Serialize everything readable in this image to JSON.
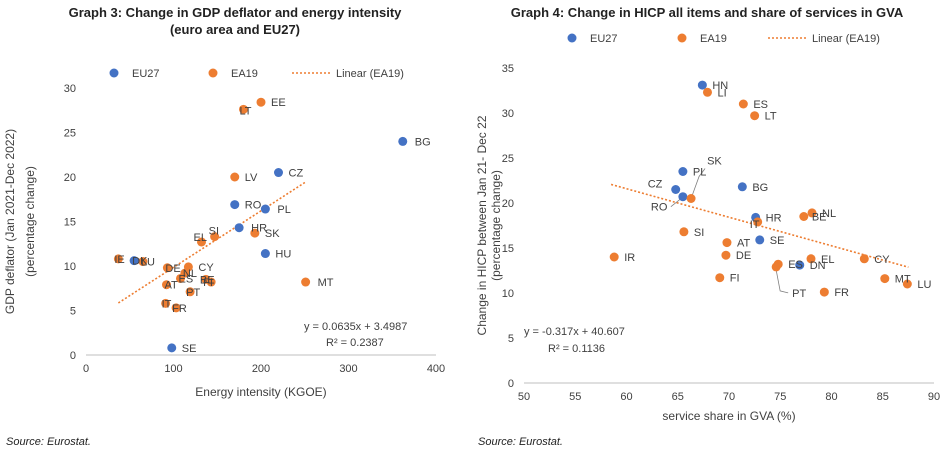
{
  "charts": [
    {
      "type": "scatter",
      "title_line1": "Graph 3: Change in GDP deflator and energy intensity",
      "title_line2": "(euro area and EU27)",
      "xlabel": "Energy intensity (KGOE)",
      "ylabel_line1": "GDP deflator (Jan 2021-Dec 2022)",
      "ylabel_line2": "(percentage change)",
      "xlim": [
        0,
        400
      ],
      "ylim": [
        0,
        30
      ],
      "xticks": [
        0,
        100,
        200,
        300,
        400
      ],
      "yticks": [
        0,
        5,
        10,
        15,
        20,
        25,
        30
      ],
      "grid": false,
      "legend_position": "top",
      "legend": [
        {
          "label": "EU27",
          "kind": "marker",
          "color": "#4472C4"
        },
        {
          "label": "EA19",
          "kind": "marker",
          "color": "#ED7D31"
        },
        {
          "label": "Linear (EA19)",
          "kind": "line",
          "color": "#ED7D31"
        }
      ],
      "trendline": {
        "slope": 0.0635,
        "intercept": 3.4987,
        "x_range": [
          37,
          252
        ],
        "color": "#ED7D31"
      },
      "equation": "y = 0.0635x + 3.4987",
      "r2": "R² = 0.2387",
      "eu27": [
        {
          "label": "BG",
          "x": 362,
          "y": 24.0
        },
        {
          "label": "CZ",
          "x": 220,
          "y": 20.5
        },
        {
          "label": "RO",
          "x": 170,
          "y": 16.9
        },
        {
          "label": "PL",
          "x": 205,
          "y": 16.4
        },
        {
          "label": "HR",
          "x": 175,
          "y": 14.3
        },
        {
          "label": "HU",
          "x": 205,
          "y": 11.4
        },
        {
          "label": "DK",
          "x": 55,
          "y": 10.6
        },
        {
          "label": "SE",
          "x": 98,
          "y": 0.8
        }
      ],
      "ea19": [
        {
          "label": "EE",
          "x": 200,
          "y": 28.4
        },
        {
          "label": "LT",
          "x": 180,
          "y": 27.6
        },
        {
          "label": "LV",
          "x": 170,
          "y": 20.0
        },
        {
          "label": "SK",
          "x": 193,
          "y": 13.7
        },
        {
          "label": "SI",
          "x": 147,
          "y": 13.3
        },
        {
          "label": "EL",
          "x": 132,
          "y": 12.7
        },
        {
          "label": "IE",
          "x": 37,
          "y": 10.8
        },
        {
          "label": "LU",
          "x": 65,
          "y": 10.5
        },
        {
          "label": "DE",
          "x": 93,
          "y": 9.8
        },
        {
          "label": "CY",
          "x": 117,
          "y": 9.9
        },
        {
          "label": "NL",
          "x": 113,
          "y": 9.2
        },
        {
          "label": "ES",
          "x": 108,
          "y": 8.6
        },
        {
          "label": "BE",
          "x": 137,
          "y": 8.5
        },
        {
          "label": "FI",
          "x": 143,
          "y": 8.2
        },
        {
          "label": "AT",
          "x": 92,
          "y": 7.9
        },
        {
          "label": "PT",
          "x": 119,
          "y": 7.1
        },
        {
          "label": "IT",
          "x": 91,
          "y": 5.8
        },
        {
          "label": "FR",
          "x": 103,
          "y": 5.3
        },
        {
          "label": "MT",
          "x": 251,
          "y": 8.2
        }
      ]
    },
    {
      "type": "scatter",
      "title_line1": "Graph 4: Change in HICP all items and share of services in GVA",
      "title_line2": "",
      "xlabel": "service share in GVA (%)",
      "ylabel_line1": "Change in HICP between Jan 21- Dec 22",
      "ylabel_line2": "(percentage change)",
      "xlim": [
        50,
        90
      ],
      "ylim": [
        0,
        35
      ],
      "xticks": [
        50,
        55,
        60,
        65,
        70,
        75,
        80,
        85,
        90
      ],
      "yticks": [
        0,
        5,
        10,
        15,
        20,
        25,
        30,
        35
      ],
      "grid": false,
      "legend_position": "top",
      "legend": [
        {
          "label": "EU27",
          "kind": "marker",
          "color": "#4472C4"
        },
        {
          "label": "EA19",
          "kind": "marker",
          "color": "#ED7D31"
        },
        {
          "label": "Linear (EA19)",
          "kind": "line",
          "color": "#ED7D31"
        }
      ],
      "trendline": {
        "slope": -0.317,
        "intercept": 40.607,
        "x_range": [
          58.5,
          87.5
        ],
        "color": "#ED7D31"
      },
      "equation": "y = -0.317x + 40.607",
      "r2": "R² = 0.1136",
      "eu27": [
        {
          "label": "HN",
          "x": 67.4,
          "y": 33.1
        },
        {
          "label": "PL",
          "x": 65.5,
          "y": 23.5
        },
        {
          "label": "CZ",
          "x": 64.8,
          "y": 21.5
        },
        {
          "label": "RO",
          "x": 65.5,
          "y": 20.7
        },
        {
          "label": "BG",
          "x": 71.3,
          "y": 21.8
        },
        {
          "label": "HR",
          "x": 72.6,
          "y": 18.4
        },
        {
          "label": "SE",
          "x": 73.0,
          "y": 15.9
        },
        {
          "label": "DN",
          "x": 76.9,
          "y": 13.1
        }
      ],
      "ea19": [
        {
          "label": "LI",
          "x": 67.9,
          "y": 32.3
        },
        {
          "label": "ES",
          "x": 71.4,
          "y": 31.0
        },
        {
          "label": "LT",
          "x": 72.5,
          "y": 29.7
        },
        {
          "label": "SK",
          "x": 66.3,
          "y": 20.5
        },
        {
          "label": "NL",
          "x": 78.1,
          "y": 18.9
        },
        {
          "label": "BE",
          "x": 77.3,
          "y": 18.5
        },
        {
          "label": "IT",
          "x": 72.8,
          "y": 17.9
        },
        {
          "label": "SI",
          "x": 65.6,
          "y": 16.8
        },
        {
          "label": "AT",
          "x": 69.8,
          "y": 15.6
        },
        {
          "label": "DE",
          "x": 69.7,
          "y": 14.2
        },
        {
          "label": "IR",
          "x": 58.8,
          "y": 14.0
        },
        {
          "label": "EL",
          "x": 78.0,
          "y": 13.8
        },
        {
          "label": "CY",
          "x": 83.2,
          "y": 13.8
        },
        {
          "label": "ES",
          "x": 74.8,
          "y": 13.2
        },
        {
          "label": "PT",
          "x": 74.6,
          "y": 12.9
        },
        {
          "label": "FI",
          "x": 69.1,
          "y": 11.7
        },
        {
          "label": "MT",
          "x": 85.2,
          "y": 11.6
        },
        {
          "label": "LU",
          "x": 87.4,
          "y": 11.0
        },
        {
          "label": "FR",
          "x": 79.3,
          "y": 10.1
        }
      ]
    }
  ],
  "source_left": "Source: Eurostat.",
  "source_right": "Source: Eurostat."
}
